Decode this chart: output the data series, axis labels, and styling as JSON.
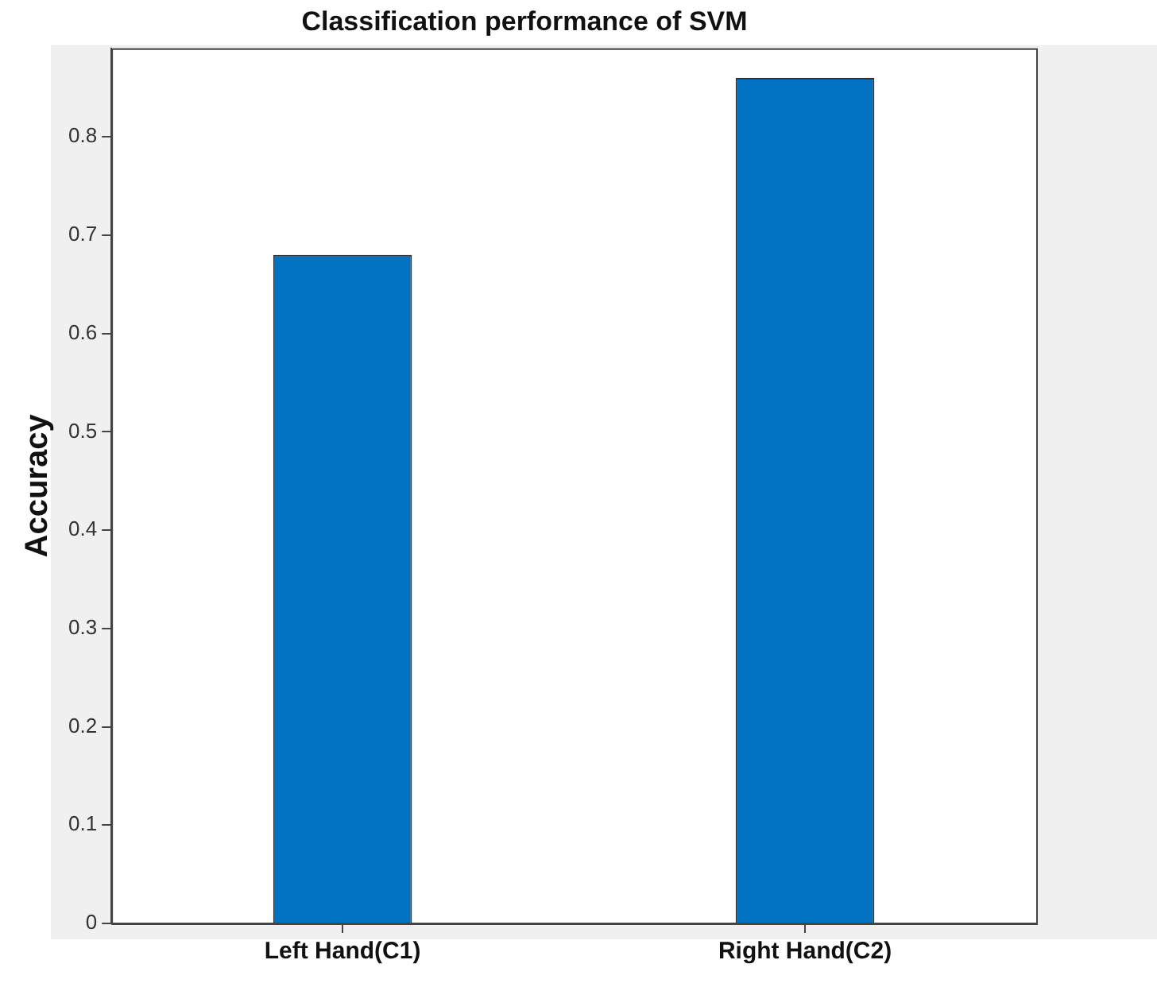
{
  "chart_data": {
    "type": "bar",
    "title": "Classification performance of SVM",
    "ylabel": "Accuracy",
    "categories": [
      "Left Hand(C1)",
      "Right Hand(C2)"
    ],
    "values": [
      0.68,
      0.86
    ],
    "color": "#0072c1",
    "ylim": [
      0,
      0.89
    ],
    "yticks": [
      0,
      0.1,
      0.2,
      0.3,
      0.4,
      0.5,
      0.6,
      0.7,
      0.8
    ],
    "grid": false,
    "legend": false
  }
}
